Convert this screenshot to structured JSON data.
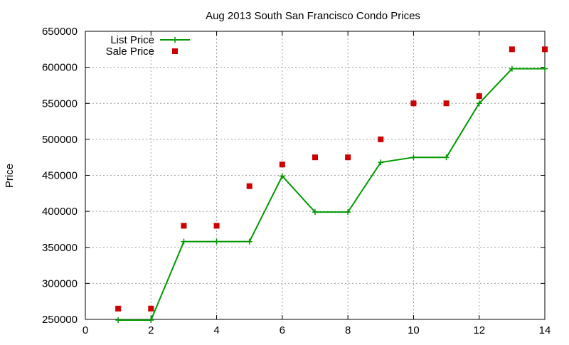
{
  "chart_data": {
    "type": "line",
    "title": "Aug 2013 South San Francisco Condo Prices",
    "xlabel": "",
    "ylabel": "Price",
    "xlim": [
      0,
      14
    ],
    "ylim": [
      250000,
      650000
    ],
    "x_ticks": [
      0,
      2,
      4,
      6,
      8,
      10,
      12,
      14
    ],
    "y_ticks": [
      250000,
      300000,
      350000,
      400000,
      450000,
      500000,
      550000,
      600000,
      650000
    ],
    "x_tick_labels": [
      "0",
      "2",
      "4",
      "6",
      "8",
      "10",
      "12",
      "14"
    ],
    "y_tick_labels": [
      "250000",
      "300000",
      "350000",
      "400000",
      "450000",
      "500000",
      "550000",
      "600000",
      "650000"
    ],
    "grid": true,
    "legend_position": "top-left",
    "series": [
      {
        "name": "List Price",
        "style": "lines+points",
        "marker": "plus",
        "color": "#009900",
        "x": [
          1,
          2,
          3,
          4,
          5,
          6,
          7,
          8,
          9,
          10,
          11,
          12,
          13,
          14
        ],
        "y": [
          249000,
          249000,
          358000,
          358000,
          358000,
          449000,
          399000,
          399000,
          468000,
          475000,
          475000,
          550000,
          598000,
          598000
        ]
      },
      {
        "name": "Sale Price",
        "style": "points",
        "marker": "square",
        "color": "#cc0000",
        "x": [
          1,
          2,
          3,
          4,
          5,
          6,
          7,
          8,
          9,
          10,
          11,
          12,
          13,
          14
        ],
        "y": [
          265000,
          265000,
          380000,
          380000,
          435000,
          465000,
          475000,
          475000,
          500000,
          550000,
          550000,
          560000,
          625000,
          625000
        ]
      }
    ]
  }
}
